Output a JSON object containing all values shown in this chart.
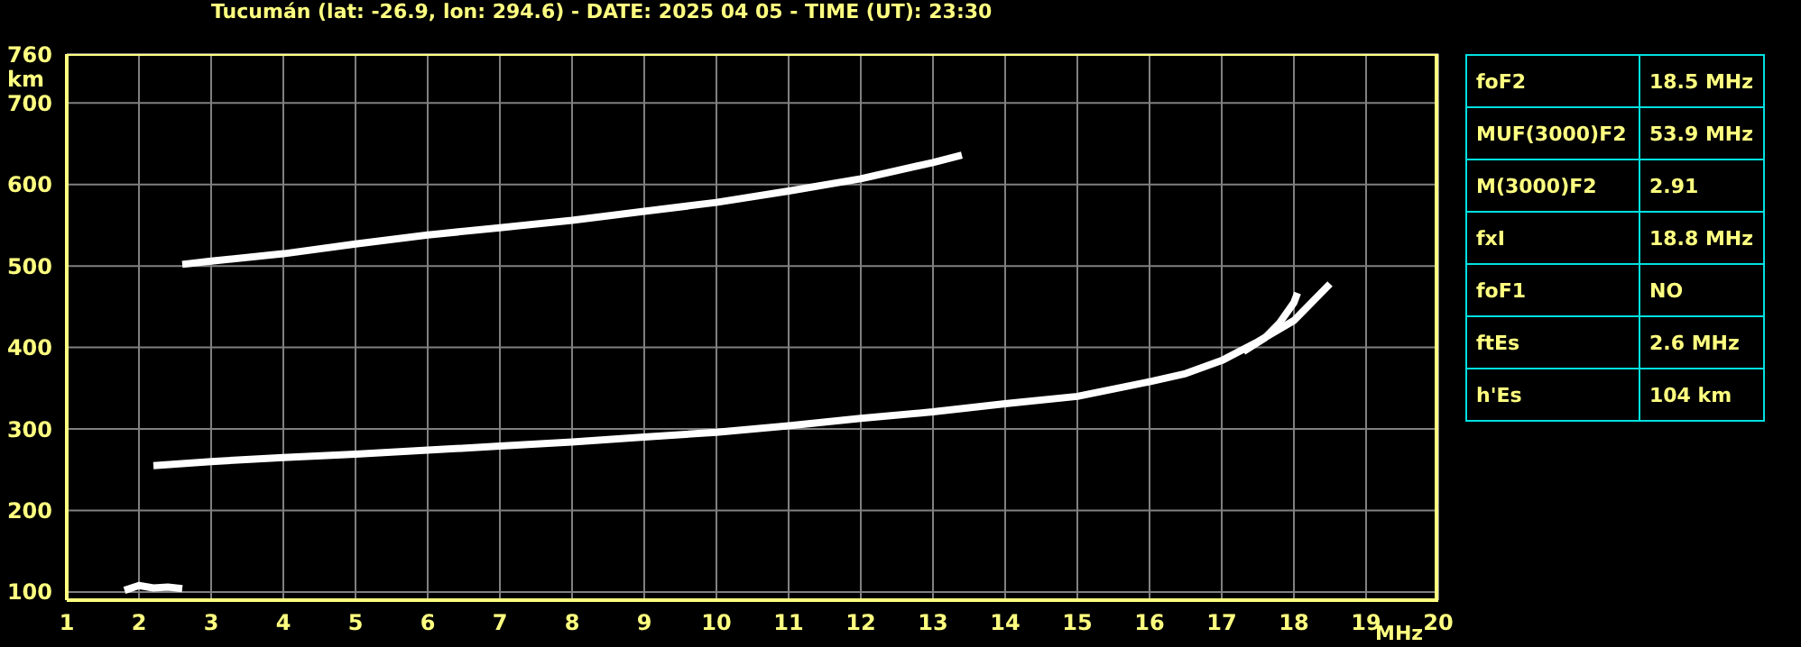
{
  "chart_data": [
    {
      "type": "line",
      "title": "Tucumán (lat: -26.9, lon: 294.6) - DATE: 2025 04 05 - TIME (UT): 23:30",
      "xlabel": "MHz",
      "ylabel": "km",
      "xlim": [
        1,
        20
      ],
      "ylim": [
        90,
        760
      ],
      "xticks": [
        1,
        2,
        3,
        4,
        5,
        6,
        7,
        8,
        9,
        10,
        11,
        12,
        13,
        14,
        15,
        16,
        17,
        18,
        19,
        20
      ],
      "yticks": [
        100,
        200,
        300,
        400,
        500,
        600,
        700,
        760
      ],
      "grid": true,
      "marker": "none",
      "line_style": "solid",
      "series": [
        {
          "color": "#ffffff",
          "x": [
            2.2,
            3,
            4,
            5,
            6,
            7,
            8,
            9,
            10,
            11,
            12,
            13,
            14,
            15,
            16,
            16.5,
            17,
            17.5,
            18,
            18.5
          ],
          "values": [
            255,
            260,
            265,
            269,
            274,
            279,
            284,
            290,
            296,
            304,
            313,
            321,
            331,
            340,
            358,
            368,
            384,
            407,
            433,
            478
          ]
        },
        {
          "color": "#ffffff",
          "x": [
            17.3,
            17.6,
            17.8,
            18,
            18.05
          ],
          "values": [
            395,
            412,
            430,
            455,
            467
          ]
        },
        {
          "color": "#ffffff",
          "x": [
            2.6,
            3,
            4,
            5,
            6,
            7,
            8,
            9,
            10,
            11,
            12,
            13,
            13.4
          ],
          "values": [
            502,
            506,
            515,
            527,
            538,
            547,
            556,
            567,
            578,
            592,
            607,
            627,
            636
          ]
        },
        {
          "color": "#ffffff",
          "x": [
            1.8,
            2,
            2.2,
            2.4,
            2.6
          ],
          "values": [
            102,
            108,
            105,
            106,
            104
          ]
        }
      ]
    },
    {
      "type": "other",
      "annotations": [
        "foF2",
        "18.5 MHz",
        "MUF(3000)F2",
        "53.9 MHz",
        "M(3000)F2",
        "2.91",
        "fxI",
        "18.8 MHz",
        "foF1",
        "NO",
        "ftEs",
        "2.6 MHz",
        "h'Es",
        "104 km"
      ]
    }
  ]
}
